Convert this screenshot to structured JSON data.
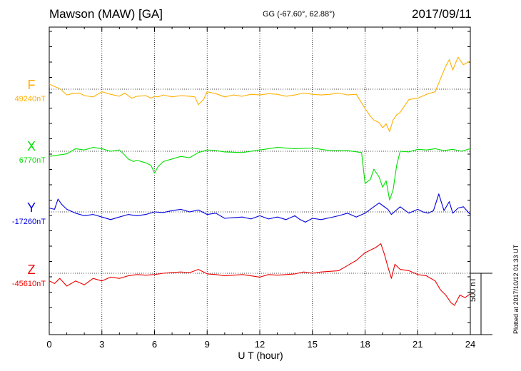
{
  "header": {
    "station": "Mawson (MAW)  [GA]",
    "coords": "GG (-67.60°,  62.88°)",
    "date": "2017/09/11"
  },
  "footer": {
    "plotted": "Plotted at 2017/10/12 01:33 UT"
  },
  "chart_data": {
    "type": "line",
    "xlabel": "U T (hour)",
    "xlim": [
      0,
      24
    ],
    "xticks": [
      "0",
      "3",
      "6",
      "9",
      "12",
      "15",
      "18",
      "21",
      "24"
    ],
    "scale_bar": "500 nT",
    "grid": true,
    "series": [
      {
        "name": "F",
        "baseline": "49240nT",
        "color": "#ffb000",
        "x": [
          0,
          0.3,
          0.6,
          1.0,
          1.3,
          1.7,
          2.0,
          2.5,
          3.0,
          3.5,
          4.0,
          4.3,
          4.7,
          5.0,
          5.5,
          5.8,
          6.0,
          6.2,
          6.5,
          7.0,
          7.5,
          8.0,
          8.3,
          8.5,
          8.8,
          9.0,
          9.5,
          10.0,
          10.5,
          11.0,
          11.5,
          12.0,
          12.5,
          13.0,
          13.5,
          14.0,
          14.5,
          15.0,
          15.5,
          16.0,
          16.5,
          17.0,
          17.5,
          18.0,
          18.3,
          18.5,
          18.8,
          19.0,
          19.2,
          19.4,
          19.6,
          19.8,
          20.0,
          20.5,
          21.0,
          21.5,
          22.0,
          22.3,
          22.6,
          22.8,
          23.0,
          23.3,
          23.6,
          24.0
        ],
        "values": [
          40,
          20,
          5,
          -45,
          -35,
          -30,
          -50,
          -60,
          -20,
          -40,
          -55,
          -30,
          -70,
          -55,
          -50,
          -70,
          -55,
          -60,
          -45,
          -60,
          -50,
          -55,
          -60,
          -120,
          -80,
          -20,
          -35,
          -60,
          -45,
          -55,
          -40,
          -45,
          -35,
          -40,
          -55,
          -45,
          -30,
          -40,
          -45,
          -40,
          -30,
          -45,
          -40,
          -150,
          -210,
          -240,
          -260,
          -300,
          -270,
          -330,
          -240,
          -200,
          -180,
          -80,
          -70,
          -40,
          -20,
          80,
          180,
          230,
          150,
          250,
          190,
          220
        ]
      },
      {
        "name": "X",
        "baseline": "6770nT",
        "color": "#00e000",
        "x": [
          0,
          0.5,
          1.0,
          1.5,
          2.0,
          2.5,
          3.0,
          3.5,
          4.0,
          4.3,
          4.5,
          4.8,
          5.0,
          5.5,
          5.8,
          6.0,
          6.2,
          6.5,
          7.0,
          7.5,
          8.0,
          8.5,
          9.0,
          9.5,
          10.0,
          11.0,
          12.0,
          13.0,
          14.0,
          15.0,
          16.0,
          17.0,
          17.8,
          18.0,
          18.3,
          18.5,
          18.8,
          19.0,
          19.2,
          19.4,
          19.6,
          19.8,
          20.0,
          20.5,
          21.0,
          21.5,
          22.0,
          22.5,
          23.0,
          23.5,
          24.0
        ],
        "values": [
          -40,
          -30,
          -20,
          20,
          10,
          30,
          20,
          0,
          10,
          -30,
          -60,
          -80,
          -70,
          -90,
          -110,
          -170,
          -120,
          -80,
          -60,
          -40,
          -50,
          -10,
          10,
          5,
          -5,
          -10,
          10,
          30,
          20,
          25,
          5,
          5,
          -10,
          -250,
          -220,
          -140,
          -200,
          -280,
          -230,
          -380,
          -300,
          -110,
          0,
          -5,
          15,
          10,
          20,
          5,
          15,
          0,
          20
        ]
      },
      {
        "name": "Y",
        "baseline": "-17260nT",
        "color": "#0000e0",
        "x": [
          0,
          0.3,
          0.5,
          0.7,
          1.0,
          1.5,
          2.0,
          2.5,
          3.0,
          3.5,
          4.0,
          4.5,
          5.0,
          5.5,
          6.0,
          6.5,
          7.0,
          7.5,
          8.0,
          8.5,
          9.0,
          9.5,
          10.0,
          10.5,
          11.0,
          11.5,
          12.0,
          12.5,
          13.0,
          13.5,
          14.0,
          14.3,
          14.6,
          15.0,
          15.5,
          16.0,
          16.5,
          17.0,
          17.5,
          18.0,
          18.5,
          18.8,
          19.0,
          19.3,
          19.5,
          20.0,
          20.5,
          21.0,
          21.3,
          21.6,
          21.9,
          22.2,
          22.5,
          22.8,
          23.0,
          23.3,
          23.6,
          24.0
        ],
        "values": [
          30,
          20,
          100,
          60,
          20,
          -10,
          -30,
          -20,
          -40,
          -60,
          -40,
          -20,
          -30,
          -20,
          0,
          -5,
          10,
          20,
          0,
          15,
          -20,
          -10,
          -50,
          -45,
          -40,
          -55,
          -30,
          -55,
          -40,
          -60,
          -30,
          -60,
          -80,
          -50,
          -60,
          -45,
          -30,
          -10,
          -40,
          -10,
          40,
          70,
          50,
          20,
          -20,
          40,
          -10,
          20,
          0,
          -10,
          10,
          140,
          10,
          80,
          -10,
          30,
          40,
          -20
        ]
      },
      {
        "name": "Z",
        "baseline": "-45610nT",
        "color": "#ee0000",
        "x": [
          0,
          0.3,
          0.6,
          1.0,
          1.5,
          2.0,
          2.5,
          3.0,
          3.5,
          4.0,
          4.5,
          5.0,
          5.5,
          6.0,
          6.5,
          7.0,
          7.5,
          8.0,
          8.5,
          9.0,
          9.5,
          10.0,
          10.5,
          11.0,
          11.5,
          12.0,
          12.5,
          13.0,
          13.5,
          14.0,
          14.5,
          15.0,
          15.5,
          16.0,
          16.5,
          17.0,
          17.5,
          18.0,
          18.3,
          18.6,
          18.9,
          19.1,
          19.3,
          19.5,
          19.7,
          20.0,
          20.5,
          21.0,
          21.5,
          22.0,
          22.3,
          22.6,
          22.9,
          23.1,
          23.4,
          23.7,
          24.0
        ],
        "values": [
          -60,
          -80,
          -40,
          -100,
          -60,
          -90,
          -40,
          -60,
          -30,
          -40,
          -20,
          -10,
          -15,
          -10,
          0,
          5,
          10,
          5,
          30,
          -5,
          -10,
          -20,
          -15,
          -10,
          -20,
          -30,
          -10,
          -15,
          -10,
          -5,
          10,
          0,
          10,
          15,
          20,
          60,
          100,
          160,
          180,
          200,
          230,
          150,
          50,
          -40,
          70,
          30,
          20,
          -10,
          -20,
          -60,
          -130,
          -170,
          -230,
          -250,
          -170,
          -190,
          -160
        ]
      }
    ]
  }
}
